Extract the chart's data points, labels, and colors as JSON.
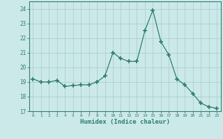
{
  "x": [
    0,
    1,
    2,
    3,
    4,
    5,
    6,
    7,
    8,
    9,
    10,
    11,
    12,
    13,
    14,
    15,
    16,
    17,
    18,
    19,
    20,
    21,
    22,
    23
  ],
  "y": [
    19.2,
    19.0,
    19.0,
    19.1,
    18.7,
    18.75,
    18.8,
    18.8,
    19.0,
    19.4,
    21.0,
    20.6,
    20.4,
    20.4,
    22.5,
    23.9,
    21.75,
    20.85,
    19.2,
    18.8,
    18.2,
    17.55,
    17.3,
    17.2
  ],
  "line_color": "#2e7d6e",
  "marker": "+",
  "marker_size": 5,
  "bg_color": "#cce9e9",
  "grid_color": "#aacfcf",
  "axis_color": "#2e7d6e",
  "xlabel": "Humidex (Indice chaleur)",
  "ylim": [
    17,
    24.5
  ],
  "yticks": [
    17,
    18,
    19,
    20,
    21,
    22,
    23,
    24
  ],
  "xlim": [
    -0.5,
    23.5
  ],
  "xticks": [
    0,
    1,
    2,
    3,
    4,
    5,
    6,
    7,
    8,
    9,
    10,
    11,
    12,
    13,
    14,
    15,
    16,
    17,
    18,
    19,
    20,
    21,
    22,
    23
  ]
}
